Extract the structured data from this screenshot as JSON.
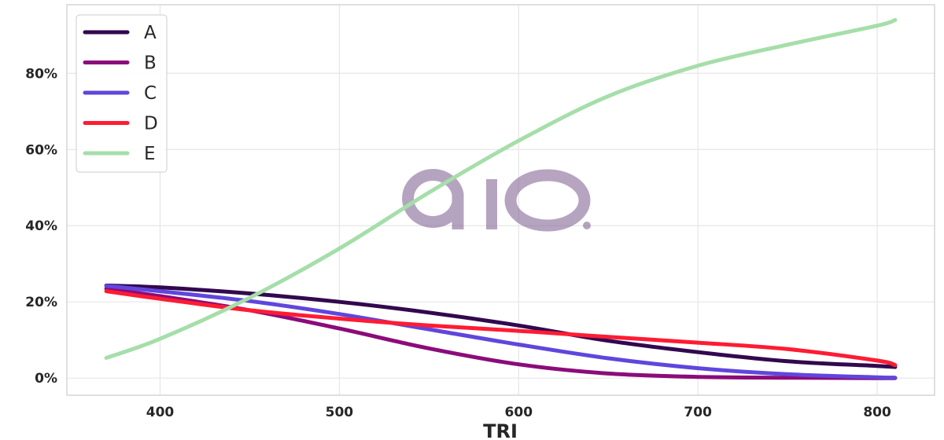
{
  "chart_data": {
    "type": "line",
    "xlabel": "TRI",
    "ylabel": "",
    "xlim": [
      348,
      832
    ],
    "ylim": [
      -4.5,
      98
    ],
    "x_ticks": [
      400,
      500,
      600,
      700,
      800
    ],
    "y_ticks": [
      0,
      20,
      40,
      60,
      80
    ],
    "y_tick_labels": [
      "0%",
      "20%",
      "40%",
      "60%",
      "80%"
    ],
    "grid": true,
    "legend_position": "top-left",
    "watermark": "aio",
    "x": [
      370,
      400,
      450,
      500,
      550,
      600,
      650,
      700,
      750,
      800,
      810
    ],
    "series": [
      {
        "name": "A",
        "color": "#32084f",
        "values": [
          24.3,
          23.8,
          22.2,
          20.0,
          17.2,
          13.8,
          9.8,
          6.8,
          4.4,
          3.2,
          2.9
        ]
      },
      {
        "name": "B",
        "color": "#8c0b7a",
        "values": [
          23.5,
          21.5,
          17.8,
          13.0,
          7.8,
          3.6,
          1.2,
          0.3,
          0.1,
          0.0,
          0.0
        ]
      },
      {
        "name": "C",
        "color": "#6046dc",
        "values": [
          24.2,
          22.8,
          20.2,
          16.8,
          12.8,
          8.8,
          5.2,
          2.6,
          1.0,
          0.2,
          0.1
        ]
      },
      {
        "name": "D",
        "color": "#ff1c33",
        "values": [
          22.8,
          20.8,
          17.8,
          15.6,
          13.8,
          12.4,
          10.8,
          9.3,
          7.6,
          4.6,
          3.4
        ]
      },
      {
        "name": "E",
        "color": "#a5dea9",
        "values": [
          5.3,
          10.3,
          21.1,
          34.0,
          48.7,
          62.3,
          74.0,
          82.0,
          87.5,
          92.5,
          94.0
        ]
      }
    ]
  }
}
